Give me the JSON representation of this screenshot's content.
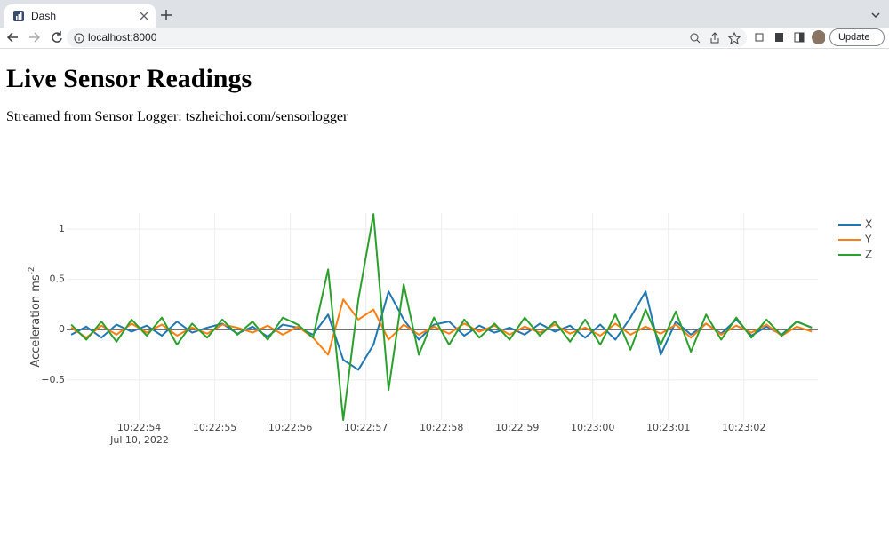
{
  "browser": {
    "tab_title": "Dash",
    "url": "localhost:8000",
    "update_button": "Update"
  },
  "page": {
    "title": "Live Sensor Readings",
    "subtitle": "Streamed from Sensor Logger: tszheichoi.com/sensorlogger"
  },
  "chart_data": {
    "type": "line",
    "y_label": "Acceleration ms",
    "y_label_superscript": "-2",
    "x_date_label": "Jul 10, 2022",
    "x": [
      37373.1,
      37373.3,
      37373.5,
      37373.7,
      37373.9,
      37374.1,
      37374.3,
      37374.5,
      37374.7,
      37374.9,
      37375.1,
      37375.3,
      37375.5,
      37375.7,
      37375.9,
      37376.1,
      37376.3,
      37376.5,
      37376.7,
      37376.9,
      37377.1,
      37377.3,
      37377.5,
      37377.7,
      37377.9,
      37378.1,
      37378.3,
      37378.5,
      37378.7,
      37378.9,
      37379.1,
      37379.3,
      37379.5,
      37379.7,
      37379.9,
      37380.1,
      37380.3,
      37380.5,
      37380.7,
      37380.9,
      37381.1,
      37381.3,
      37381.5,
      37381.7,
      37381.9,
      37382.1,
      37382.3,
      37382.5,
      37382.7,
      37382.9
    ],
    "series": [
      {
        "name": "X",
        "color": "#1f77b4",
        "values": [
          -0.05,
          0.03,
          -0.08,
          0.05,
          -0.02,
          0.04,
          -0.06,
          0.08,
          -0.03,
          0.02,
          0.06,
          -0.04,
          0.03,
          -0.07,
          0.05,
          0.02,
          -0.05,
          0.15,
          -0.3,
          -0.4,
          -0.15,
          0.38,
          0.1,
          -0.1,
          0.05,
          0.08,
          -0.06,
          0.04,
          -0.03,
          0.02,
          -0.05,
          0.06,
          -0.02,
          0.04,
          -0.08,
          0.05,
          -0.1,
          0.12,
          0.38,
          -0.25,
          0.08,
          -0.05,
          0.06,
          -0.04,
          0.1,
          -0.06,
          0.03,
          -0.05,
          0.08,
          0.02
        ]
      },
      {
        "name": "Y",
        "color": "#ff7f0e",
        "values": [
          0.02,
          -0.08,
          0.04,
          -0.05,
          0.06,
          -0.03,
          0.05,
          -0.06,
          0.02,
          -0.04,
          0.05,
          0.02,
          -0.03,
          0.04,
          -0.05,
          0.03,
          -0.08,
          -0.25,
          0.3,
          0.1,
          0.2,
          -0.1,
          0.05,
          -0.05,
          0.03,
          -0.04,
          0.06,
          -0.02,
          0.04,
          -0.05,
          0.03,
          -0.03,
          0.05,
          -0.04,
          0.02,
          -0.06,
          0.06,
          -0.05,
          0.03,
          -0.04,
          0.05,
          -0.08,
          0.06,
          -0.05,
          0.04,
          -0.03,
          0.05,
          -0.06,
          0.03,
          -0.02
        ]
      },
      {
        "name": "Z",
        "color": "#2ca02c",
        "values": [
          0.05,
          -0.1,
          0.08,
          -0.12,
          0.1,
          -0.06,
          0.12,
          -0.15,
          0.06,
          -0.08,
          0.1,
          -0.05,
          0.08,
          -0.1,
          0.12,
          0.05,
          -0.08,
          0.6,
          -0.9,
          0.3,
          1.15,
          -0.6,
          0.45,
          -0.25,
          0.12,
          -0.15,
          0.1,
          -0.08,
          0.06,
          -0.1,
          0.12,
          -0.06,
          0.08,
          -0.12,
          0.1,
          -0.15,
          0.15,
          -0.2,
          0.2,
          -0.15,
          0.18,
          -0.22,
          0.15,
          -0.1,
          0.12,
          -0.08,
          0.1,
          -0.06,
          0.08,
          0.02
        ]
      }
    ],
    "xlim": [
      37373.04,
      37382.98
    ],
    "xticks": [
      {
        "value": 37374,
        "label": "10:22:54"
      },
      {
        "value": 37375,
        "label": "10:22:55"
      },
      {
        "value": 37376,
        "label": "10:22:56"
      },
      {
        "value": 37377,
        "label": "10:22:57"
      },
      {
        "value": 37378,
        "label": "10:22:58"
      },
      {
        "value": 37379,
        "label": "10:22:59"
      },
      {
        "value": 37380,
        "label": "10:23:00"
      },
      {
        "value": 37381,
        "label": "10:23:01"
      },
      {
        "value": 37382,
        "label": "10:23:02"
      }
    ],
    "ylim": [
      -0.9,
      1.16
    ],
    "yticks": [
      {
        "value": -0.5,
        "label": "−0.5"
      },
      0,
      0.5,
      1
    ],
    "grid": true,
    "legend": "right"
  }
}
